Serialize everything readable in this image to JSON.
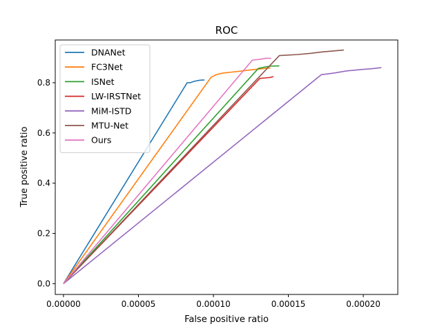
{
  "chart_data": {
    "type": "line",
    "title": "ROC",
    "xlabel": "False positive ratio",
    "ylabel": "True positive ratio",
    "xlim": [
      -5.5e-06,
      0.000223
    ],
    "ylim": [
      -0.043,
      0.97
    ],
    "xticks": [
      0,
      5e-05,
      0.0001,
      0.00015,
      0.0002
    ],
    "xtick_labels": [
      "0.00000",
      "0.00005",
      "0.00010",
      "0.00015",
      "0.00020"
    ],
    "yticks": [
      0,
      0.2,
      0.4,
      0.6,
      0.8
    ],
    "ytick_labels": [
      "0.0",
      "0.2",
      "0.4",
      "0.6",
      "0.8"
    ],
    "grid": false,
    "legend_position": "top-left",
    "series": [
      {
        "name": "DNANet",
        "color": "#1f77b4",
        "x": [
          0,
          8.25e-05,
          8.45e-05,
          8.75e-05,
          9.1e-05,
          9.4e-05
        ],
        "y": [
          0,
          0.8,
          0.8,
          0.806,
          0.81,
          0.811
        ]
      },
      {
        "name": "FC3Net",
        "color": "#ff7f0e",
        "x": [
          0,
          9.85e-05,
          0.000102,
          0.000106,
          0.000112,
          0.000118,
          0.000125,
          0.000133,
          0.000138
        ],
        "y": [
          0,
          0.822,
          0.832,
          0.838,
          0.842,
          0.846,
          0.851,
          0.856,
          0.859
        ]
      },
      {
        "name": "ISNet",
        "color": "#2ca02c",
        "x": [
          0,
          0.00013,
          0.000134,
          0.000138,
          0.000144
        ],
        "y": [
          0,
          0.857,
          0.862,
          0.866,
          0.867
        ]
      },
      {
        "name": "LW-IRSTNet",
        "color": "#d62728",
        "x": [
          0,
          0.000131,
          0.0001345,
          0.000138,
          0.00014
        ],
        "y": [
          0,
          0.817,
          0.819,
          0.821,
          0.824
        ]
      },
      {
        "name": "MiM-ISTD",
        "color": "#9467bd",
        "x": [
          0,
          0.000172,
          0.00018,
          0.000189,
          0.000198,
          0.000206,
          0.000212
        ],
        "y": [
          0,
          0.832,
          0.838,
          0.847,
          0.852,
          0.856,
          0.86
        ]
      },
      {
        "name": "MTU-Net",
        "color": "#8c564b",
        "x": [
          0,
          0.000144,
          0.000156,
          0.000165,
          0.000172,
          0.000181,
          0.000187
        ],
        "y": [
          0,
          0.908,
          0.912,
          0.917,
          0.922,
          0.927,
          0.93
        ]
      },
      {
        "name": "Ours",
        "color": "#e377c2",
        "x": [
          0,
          0.000126,
          0.000131,
          0.0001345,
          0.0001385
        ],
        "y": [
          0,
          0.89,
          0.893,
          0.897,
          0.897
        ]
      }
    ]
  }
}
